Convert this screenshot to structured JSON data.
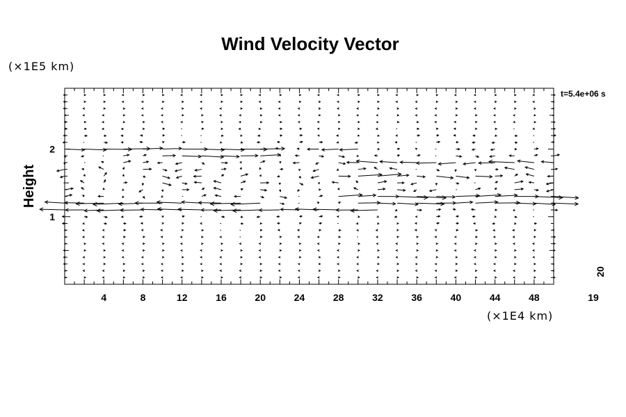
{
  "chart_data": {
    "type": "vector-field",
    "title": "Wind Velocity Vector",
    "xlabel": "",
    "ylabel": "Height",
    "x_unit": "(×1E4 km)",
    "y_unit": "(×1E5 km)",
    "time_label": "t=5.4e+06 s",
    "vertical_corner_label": "20",
    "horizontal_corner_label": "19",
    "xlim": [
      0,
      50
    ],
    "ylim": [
      0,
      2.9
    ],
    "x_ticks": [
      4,
      8,
      12,
      16,
      20,
      24,
      28,
      32,
      36,
      40,
      44,
      48
    ],
    "y_ticks": [
      1,
      2
    ],
    "grid": false,
    "x_positions": [
      0,
      2,
      4,
      6,
      8,
      10,
      12,
      14,
      16,
      18,
      20,
      22,
      24,
      26,
      28,
      30,
      32,
      34,
      36,
      38,
      40,
      42,
      44,
      46,
      48,
      50
    ],
    "jets": [
      {
        "y": 2.0,
        "u": 2.6,
        "x_start": 0,
        "x_end": 21
      },
      {
        "y": 1.9,
        "u": 2.0,
        "x_start": 10,
        "x_end": 20
      },
      {
        "y": 1.2,
        "u": -2.8,
        "x_start": 0,
        "x_end": 20
      },
      {
        "y": 1.1,
        "u": -2.6,
        "x_start": 0,
        "x_end": 32
      },
      {
        "y": 2.0,
        "u": -1.8,
        "x_start": 25,
        "x_end": 31
      },
      {
        "y": 1.8,
        "u": -2.0,
        "x_start": 30,
        "x_end": 50
      },
      {
        "y": 1.6,
        "u": 1.8,
        "x_start": 28,
        "x_end": 42
      },
      {
        "y": 1.3,
        "u": 2.6,
        "x_start": 28,
        "x_end": 50
      },
      {
        "y": 1.2,
        "u": 2.4,
        "x_start": 30,
        "x_end": 50
      }
    ],
    "vortices": [
      {
        "x": 2,
        "y": 1.6,
        "strength": 1.6
      },
      {
        "x": 6,
        "y": 1.5,
        "strength": -1.4
      },
      {
        "x": 46,
        "y": 1.6,
        "strength": 1.8
      },
      {
        "x": 33,
        "y": 1.8,
        "strength": -1.2
      }
    ]
  }
}
